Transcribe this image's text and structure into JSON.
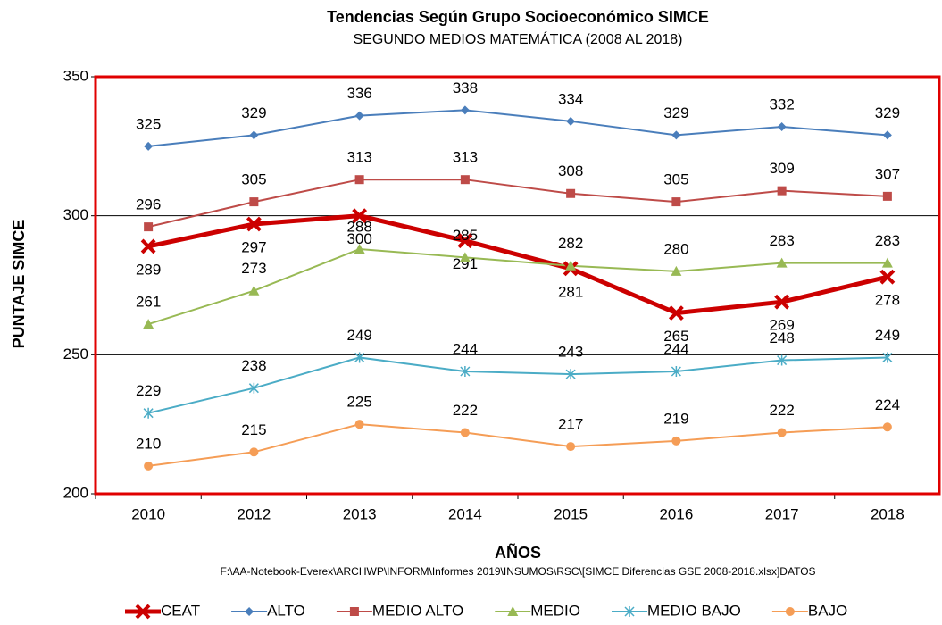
{
  "chart_data": {
    "type": "line",
    "title": "Tendencias Según Grupo Socioeconómico SIMCE",
    "subtitle": "SEGUNDO MEDIOS MATEMÁTICA  (2008 AL 2018)",
    "x_label": "AÑOS",
    "y_label": "PUNTAJE SIMCE",
    "note": "F:\\AA-Notebook-Everex\\ARCHWP\\INFORM\\Informes 2019\\INSUMOS\\RSC\\[SIMCE Diferencias GSE 2008-2018.xlsx]DATOS",
    "categories": [
      "2010",
      "2012",
      "2013",
      "2014",
      "2015",
      "2016",
      "2017",
      "2018"
    ],
    "ylim": [
      200,
      350
    ],
    "yticks": [
      200,
      250,
      300,
      350
    ],
    "grid": true,
    "legend": "bottom",
    "series": [
      {
        "name": "CEAT",
        "color": "#cc0000",
        "marker": "x",
        "values": [
          289,
          297,
          300,
          291,
          281,
          265,
          269,
          278
        ]
      },
      {
        "name": "ALTO",
        "color": "#4a7ebb",
        "marker": "diamond",
        "values": [
          325,
          329,
          336,
          338,
          334,
          329,
          332,
          329
        ]
      },
      {
        "name": "MEDIO ALTO",
        "color": "#be4b48",
        "marker": "square",
        "values": [
          296,
          305,
          313,
          313,
          308,
          305,
          309,
          307
        ]
      },
      {
        "name": "MEDIO",
        "color": "#98b954",
        "marker": "triangle",
        "values": [
          261,
          273,
          288,
          285,
          282,
          280,
          283,
          283
        ]
      },
      {
        "name": "MEDIO BAJO",
        "color": "#4bacc6",
        "marker": "star",
        "values": [
          229,
          238,
          249,
          244,
          243,
          244,
          248,
          249
        ]
      },
      {
        "name": "BAJO",
        "color": "#f59d56",
        "marker": "circle",
        "values": [
          210,
          215,
          225,
          222,
          217,
          219,
          222,
          224
        ]
      }
    ]
  }
}
